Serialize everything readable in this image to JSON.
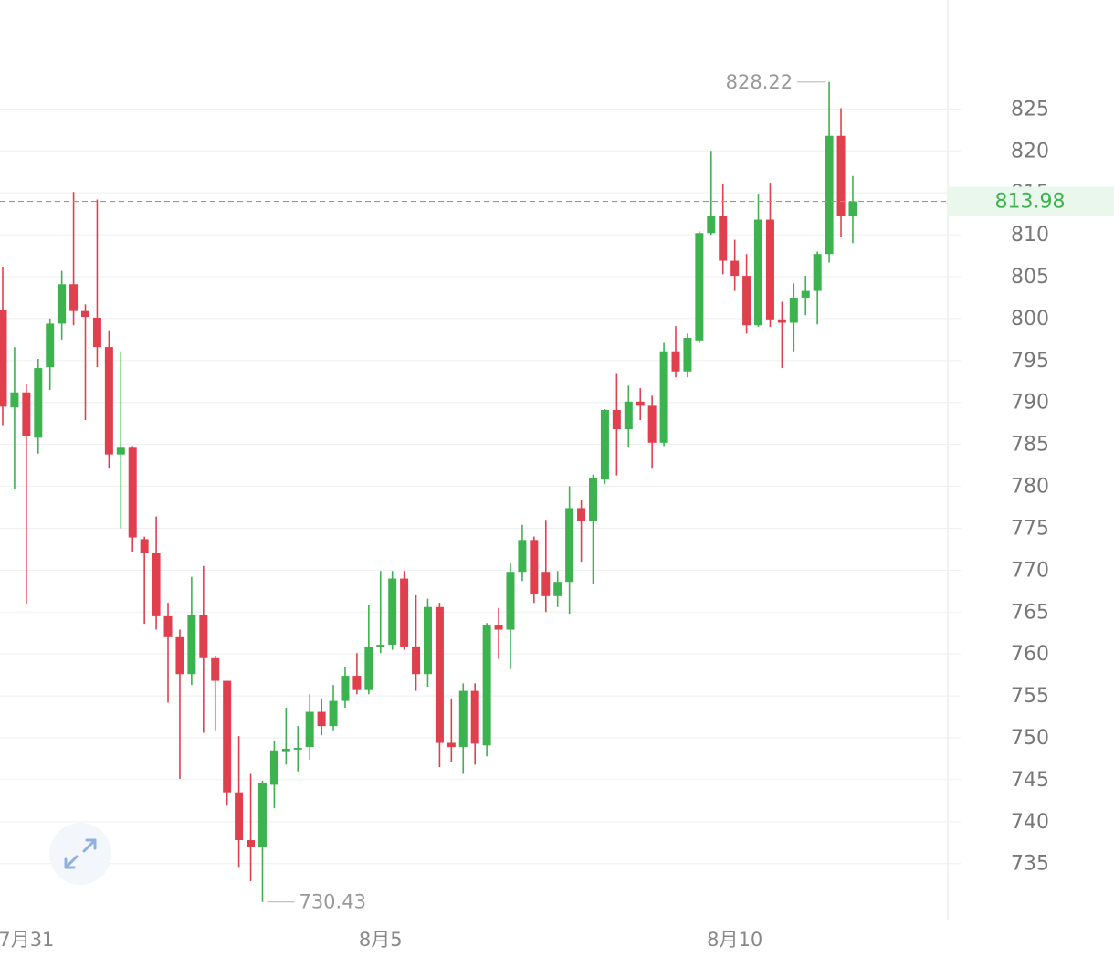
{
  "chart_data": {
    "type": "candlestick",
    "categories": [
      null,
      null,
      "7月31",
      null,
      null,
      null,
      null,
      null,
      null,
      null,
      null,
      null,
      null,
      null,
      null,
      null,
      null,
      null,
      null,
      null,
      null,
      null,
      null,
      null,
      null,
      null,
      null,
      null,
      null,
      null,
      null,
      null,
      "8月5",
      null,
      null,
      null,
      null,
      null,
      null,
      null,
      null,
      null,
      null,
      null,
      null,
      null,
      null,
      null,
      null,
      null,
      null,
      null,
      null,
      null,
      null,
      null,
      null,
      null,
      null,
      null,
      null,
      null,
      "8月10",
      null,
      null,
      null,
      null,
      null,
      null,
      null,
      null,
      null,
      null
    ],
    "open": [
      801,
      789.4,
      791.2,
      785.8,
      794.2,
      799.4,
      804.1,
      800.9,
      800.1,
      796.6,
      783.8,
      784.6,
      773.7,
      772,
      764.5,
      762,
      757.6,
      764.7,
      759.5,
      756.8,
      743.5,
      737.8,
      737,
      744.4,
      748.4,
      748.6,
      748.9,
      753.1,
      751.4,
      754.4,
      757.4,
      755.7,
      760.8,
      761.1,
      769,
      760.9,
      757.6,
      765.6,
      749.4,
      748.9,
      755.6,
      749.1,
      763.5,
      762.9,
      769.8,
      773.6,
      769.8,
      766.9,
      768.6,
      777.4,
      775.9,
      780.8,
      789.1,
      786.8,
      790.1,
      789.6,
      785.2,
      796.1,
      793.7,
      797.4,
      810.2,
      812.3,
      806.9,
      805.1,
      799.2,
      811.8,
      799.9,
      799.5,
      802.5,
      803.3,
      807.7,
      821.8,
      812.2
    ],
    "high": [
      806.2,
      796.6,
      792.2,
      795.2,
      800,
      805.7,
      815.1,
      801.7,
      814.2,
      798.6,
      796.1,
      784.8,
      774,
      776.4,
      766.1,
      762.9,
      769.2,
      770.5,
      759.8,
      756.8,
      750.2,
      745.7,
      744.9,
      749.6,
      753.6,
      751.4,
      755.2,
      754.7,
      756.3,
      758.5,
      760.1,
      765.8,
      769.9,
      769.9,
      769.9,
      767,
      766.6,
      766.1,
      754.7,
      756.5,
      756.5,
      763.7,
      765.5,
      770.8,
      775.4,
      774,
      776,
      769.9,
      780,
      778.4,
      781.4,
      789.2,
      793.4,
      792,
      791.7,
      790.8,
      797.1,
      799.1,
      798.2,
      810.4,
      820,
      816.1,
      809.4,
      807.7,
      814.9,
      816.2,
      802,
      804.2,
      805.1,
      808,
      828.22,
      825.1,
      817
    ],
    "low": [
      787.3,
      779.7,
      766,
      783.9,
      791.5,
      797.5,
      799.2,
      787.9,
      794.2,
      782.1,
      775,
      772.2,
      763.6,
      762.9,
      754.2,
      745.1,
      756.3,
      750.6,
      750.9,
      741.9,
      734.6,
      732.9,
      730.43,
      741.6,
      746.8,
      746,
      747.4,
      750.3,
      750.9,
      753.6,
      755.2,
      755.2,
      760.1,
      760.5,
      760.5,
      755.6,
      756.1,
      746.5,
      747.1,
      745.7,
      746.8,
      747.8,
      759.4,
      758.2,
      768.7,
      766.1,
      765,
      765.6,
      764.8,
      771,
      768.3,
      780.3,
      781.3,
      784.6,
      787.9,
      782.1,
      784.8,
      793,
      793,
      797.1,
      810,
      805.3,
      803.3,
      798.2,
      799,
      799,
      794.1,
      796.1,
      800.4,
      799.3,
      806.7,
      809.7,
      809
    ],
    "close": [
      789.5,
      791.2,
      786,
      794.1,
      799.4,
      804.1,
      800.9,
      800.2,
      796.6,
      783.8,
      784.6,
      773.9,
      772,
      764.5,
      762,
      757.6,
      764.7,
      759.5,
      756.8,
      743.5,
      737.8,
      737,
      744.6,
      748.5,
      748.7,
      748.8,
      753.1,
      751.4,
      754.4,
      757.4,
      755.7,
      760.8,
      761.1,
      769,
      760.9,
      757.6,
      765.6,
      749.4,
      748.9,
      755.6,
      749.3,
      763.5,
      762.9,
      769.8,
      773.6,
      767.2,
      766.9,
      768.6,
      777.4,
      775.9,
      781,
      789.1,
      786.8,
      790.1,
      789.6,
      785.2,
      796.1,
      793.7,
      797.7,
      810.2,
      812.3,
      806.9,
      805.1,
      799.2,
      811.8,
      799.9,
      799.5,
      802.5,
      803.3,
      807.7,
      821.8,
      812.2,
      813.98
    ],
    "up_color": "#3cb34f",
    "down_color": "#e0404e",
    "ylim": [
      728,
      838
    ],
    "yticks": [
      735,
      740,
      745,
      750,
      755,
      760,
      765,
      770,
      775,
      780,
      785,
      790,
      795,
      800,
      805,
      810,
      815,
      820,
      825
    ],
    "grid": true
  }
}
